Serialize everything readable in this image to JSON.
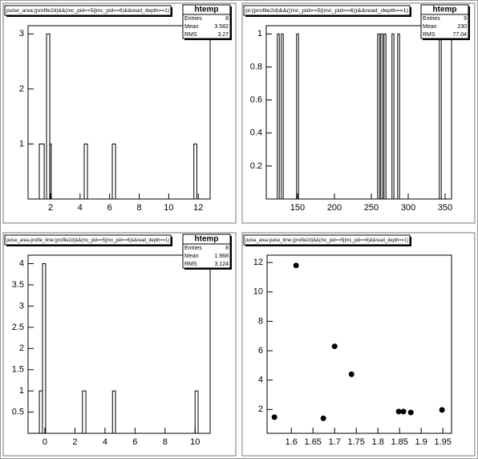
{
  "chart_data": [
    {
      "type": "histogram",
      "title": "pulse_area:(profile2d)&&(mc_pid==5||mc_pid==6)&&read_depth==1)",
      "bins": [
        0.48,
        1.24,
        1.57,
        1.73,
        1.95,
        2.05,
        4.28,
        4.5,
        6.18,
        6.4,
        11.7,
        11.9,
        12.8
      ],
      "counts": [
        0,
        1,
        0,
        3,
        1,
        0,
        1,
        0,
        1,
        0,
        1,
        0
      ],
      "xlim": [
        0.48,
        12.8
      ],
      "ylim": [
        0,
        3.15
      ],
      "xticks": [
        2,
        4,
        6,
        8,
        10,
        12
      ],
      "yticks": [
        1,
        2,
        3
      ],
      "color": "#000000",
      "stats": {
        "title": "htemp",
        "rows": [
          {
            "label": "Entries",
            "value": 8
          },
          {
            "label": "Mean",
            "value": 3.582
          },
          {
            "label": "RMS",
            "value": 3.27
          }
        ]
      }
    },
    {
      "type": "histogram",
      "title": "pi:(profile2d)&&((mc_pid==5||mc_pid==6))&&read_depth==1)",
      "bins": [
        107.6,
        122.6,
        125.2,
        128.0,
        130.6,
        148.7,
        151.3,
        258.5,
        261.1,
        262.8,
        265.4,
        267.2,
        269.8,
        278.0,
        280.6,
        285.7,
        288.3,
        342.2,
        344.8,
        358.7
      ],
      "counts": [
        0,
        1,
        0,
        1,
        0,
        1,
        0,
        1,
        0,
        1,
        0,
        1,
        0,
        1,
        0,
        1,
        0,
        1,
        0
      ],
      "xlim": [
        107.6,
        358.7
      ],
      "ylim": [
        0,
        1.05
      ],
      "xticks": [
        150,
        200,
        250,
        300,
        350
      ],
      "yticks": [
        0.2,
        0.4,
        0.6,
        0.8,
        1
      ],
      "color": "#000000",
      "stats": {
        "title": "htemp",
        "rows": [
          {
            "label": "Entries",
            "value": 9
          },
          {
            "label": "Mean",
            "value": 230
          },
          {
            "label": "RMS",
            "value": 77.04
          }
        ]
      }
    },
    {
      "type": "histogram",
      "title": "pulse_area-profile_time:(profile2d)&&(mc_pid==5||mc_pid==6)&&read_depth==1)",
      "bins": [
        -1.12,
        -0.37,
        -0.16,
        0.05,
        2.5,
        2.73,
        4.5,
        4.7,
        10.0,
        10.2,
        11.0
      ],
      "counts": [
        0,
        1,
        4,
        0,
        1,
        0,
        1,
        0,
        1,
        0
      ],
      "xlim": [
        -1.12,
        11.0
      ],
      "ylim": [
        0,
        4.2
      ],
      "xticks": [
        0,
        2,
        4,
        6,
        8,
        10
      ],
      "yticks": [
        0.5,
        1,
        1.5,
        2,
        2.5,
        3,
        3.5,
        4
      ],
      "color": "#000000",
      "stats": {
        "title": "htemp",
        "rows": [
          {
            "label": "Entries",
            "value": 8
          },
          {
            "label": "Mean",
            "value": 1.968
          },
          {
            "label": "RMS",
            "value": 3.124
          }
        ]
      }
    },
    {
      "type": "scatter",
      "title": "pulse_area:pulse_time:(profile2d)&&(mc_pid==5||mc_pid==6)&&read_depth==1)",
      "x": [
        1.561,
        1.611,
        1.674,
        1.7,
        1.739,
        1.848,
        1.859,
        1.876,
        1.948
      ],
      "values": [
        1.48,
        11.8,
        1.4,
        6.3,
        4.4,
        1.86,
        1.86,
        1.8,
        1.97
      ],
      "xlim": [
        1.544,
        1.97
      ],
      "ylim": [
        0.38,
        12.5
      ],
      "xticks": [
        1.6,
        1.65,
        1.7,
        1.75,
        1.8,
        1.85,
        1.9,
        1.95
      ],
      "yticks": [
        2,
        4,
        6,
        8,
        10,
        12
      ],
      "color": "#000000"
    }
  ]
}
